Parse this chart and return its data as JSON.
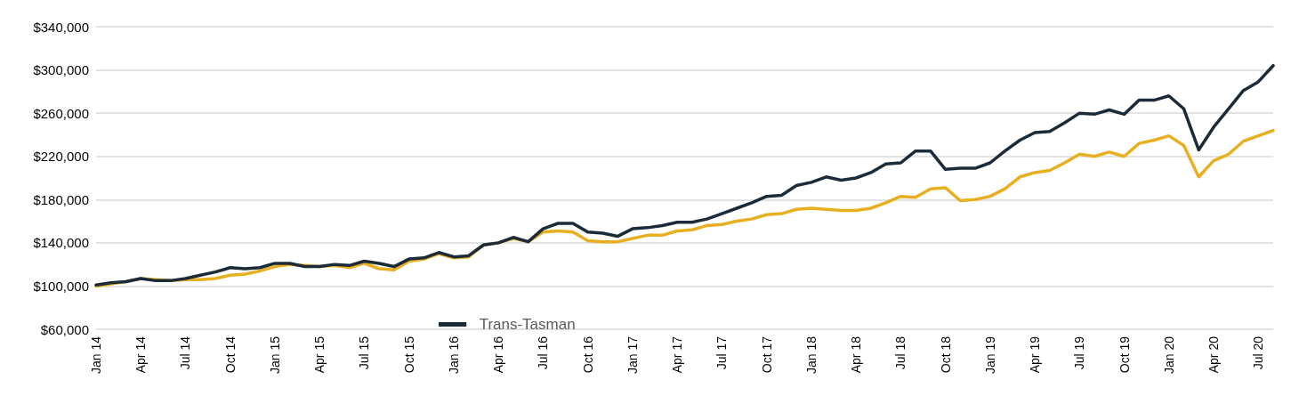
{
  "chart_data": {
    "type": "line",
    "categories": [
      "Jan 14",
      null,
      null,
      "Apr 14",
      null,
      null,
      "Jul 14",
      null,
      null,
      "Oct 14",
      null,
      null,
      "Jan 15",
      null,
      null,
      "Apr 15",
      null,
      null,
      "Jul 15",
      null,
      null,
      "Oct 15",
      null,
      null,
      "Jan 16",
      null,
      null,
      "Apr 16",
      null,
      null,
      "Jul 16",
      null,
      null,
      "Oct 16",
      null,
      null,
      "Jan 17",
      null,
      null,
      "Apr 17",
      null,
      null,
      "Jul 17",
      null,
      null,
      "Oct 17",
      null,
      null,
      "Jan 18",
      null,
      null,
      "Apr 18",
      null,
      null,
      "Jul 18",
      null,
      null,
      "Oct 18",
      null,
      null,
      "Jan 19",
      null,
      null,
      "Apr 19",
      null,
      null,
      "Jul 19",
      null,
      null,
      "Oct 19",
      null,
      null,
      "Jan 20",
      null,
      null,
      "Apr 20",
      null,
      null,
      "Jul 20",
      null
    ],
    "series": [
      {
        "name": "Trans-Tasman",
        "color": "#1c2b39",
        "values": [
          101000,
          103000,
          104000,
          107000,
          105000,
          105000,
          107000,
          110000,
          113000,
          117000,
          116000,
          117000,
          121000,
          121000,
          118000,
          118000,
          120000,
          119000,
          123000,
          121000,
          118000,
          125000,
          126000,
          131000,
          127000,
          128000,
          138000,
          140000,
          145000,
          141000,
          153000,
          158000,
          158000,
          150000,
          149000,
          146000,
          153000,
          154000,
          156000,
          159000,
          159000,
          162000,
          167000,
          172000,
          177000,
          183000,
          184000,
          193000,
          196000,
          201000,
          198000,
          200000,
          205000,
          213000,
          214000,
          225000,
          225000,
          208000,
          209000,
          209000,
          214000,
          225000,
          235000,
          242000,
          243000,
          251000,
          260000,
          259000,
          263000,
          259000,
          272000,
          272000,
          276000,
          264000,
          226000,
          247000,
          264000,
          281000,
          289000,
          304000
        ]
      },
      {
        "color": "#e8b020",
        "values": [
          100000,
          102000,
          104000,
          107000,
          106000,
          105000,
          106000,
          106000,
          107000,
          110000,
          111000,
          114000,
          118000,
          120000,
          119000,
          118000,
          119000,
          117000,
          121000,
          116000,
          115000,
          123000,
          125000,
          130000,
          126000,
          127000,
          138000,
          140000,
          144000,
          141000,
          150000,
          151000,
          150000,
          142000,
          141000,
          141000,
          144000,
          147000,
          147000,
          151000,
          152000,
          156000,
          157000,
          160000,
          162000,
          166000,
          167000,
          171000,
          172000,
          171000,
          170000,
          170000,
          172000,
          177000,
          183000,
          182000,
          190000,
          191000,
          179000,
          180000,
          183000,
          190000,
          201000,
          205000,
          207000,
          214000,
          222000,
          220000,
          224000,
          220000,
          232000,
          235000,
          239000,
          230000,
          201000,
          216000,
          222000,
          234000,
          239000,
          244000
        ]
      }
    ],
    "ylim": [
      60000,
      340000
    ],
    "yticks": [
      {
        "value": 60000,
        "label": "$60,000"
      },
      {
        "value": 100000,
        "label": "$100,000"
      },
      {
        "value": 140000,
        "label": "$140,000"
      },
      {
        "value": 180000,
        "label": "$180,000"
      },
      {
        "value": 220000,
        "label": "$220,000"
      },
      {
        "value": 260000,
        "label": "$260,000"
      },
      {
        "value": 300000,
        "label": "$300,000"
      },
      {
        "value": 340000,
        "label": "$340,000"
      }
    ],
    "grid": "y",
    "legend": "bottom",
    "marker": "none",
    "line_style": "solid"
  }
}
